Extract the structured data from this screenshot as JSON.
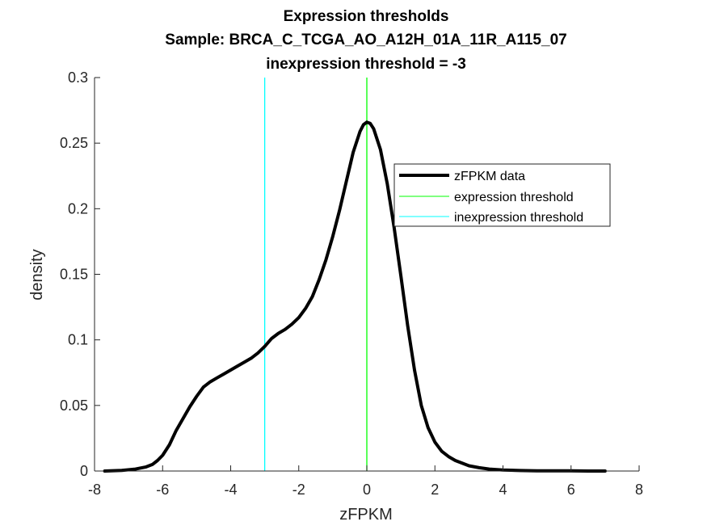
{
  "chart_data": {
    "type": "line",
    "title": "Expression thresholds",
    "subtitle": "Sample: BRCA_C_TCGA_AO_A12H_01A_11R_A115_07",
    "subtitle2": "inexpression threshold = -3",
    "xlabel": "zFPKM",
    "ylabel": "density",
    "xlim": [
      -8,
      8
    ],
    "ylim": [
      0,
      0.3
    ],
    "xticks": [
      -8,
      -6,
      -4,
      -2,
      0,
      2,
      4,
      6,
      8
    ],
    "xtick_labels": [
      "-8",
      "-6",
      "-4",
      "-2",
      "0",
      "2",
      "4",
      "6",
      "8"
    ],
    "yticks": [
      0,
      0.05,
      0.1,
      0.15,
      0.2,
      0.25,
      0.3
    ],
    "ytick_labels": [
      "0",
      "0.05",
      "0.1",
      "0.15",
      "0.2",
      "0.25",
      "0.3"
    ],
    "grid": false,
    "legend_position": "right",
    "series": [
      {
        "name": "zFPKM data",
        "color": "#000000",
        "x": [
          -7.7,
          -7.2,
          -6.8,
          -6.5,
          -6.3,
          -6.15,
          -6.0,
          -5.8,
          -5.6,
          -5.4,
          -5.2,
          -5.0,
          -4.8,
          -4.6,
          -4.4,
          -4.2,
          -4.0,
          -3.8,
          -3.6,
          -3.4,
          -3.2,
          -3.0,
          -2.8,
          -2.6,
          -2.4,
          -2.2,
          -2.0,
          -1.8,
          -1.6,
          -1.4,
          -1.2,
          -1.0,
          -0.8,
          -0.6,
          -0.4,
          -0.2,
          -0.1,
          0.0,
          0.1,
          0.2,
          0.4,
          0.6,
          0.8,
          1.0,
          1.2,
          1.4,
          1.6,
          1.8,
          2.0,
          2.2,
          2.4,
          2.6,
          2.8,
          3.0,
          3.3,
          3.6,
          4.0,
          4.5,
          5.0,
          5.5,
          6.0,
          6.5,
          7.0
        ],
        "y": [
          0.0,
          0.0005,
          0.0015,
          0.003,
          0.005,
          0.008,
          0.012,
          0.02,
          0.031,
          0.04,
          0.049,
          0.057,
          0.064,
          0.068,
          0.071,
          0.074,
          0.077,
          0.08,
          0.083,
          0.086,
          0.09,
          0.095,
          0.101,
          0.105,
          0.108,
          0.112,
          0.117,
          0.124,
          0.133,
          0.146,
          0.161,
          0.179,
          0.199,
          0.221,
          0.243,
          0.259,
          0.264,
          0.266,
          0.265,
          0.261,
          0.245,
          0.219,
          0.186,
          0.149,
          0.111,
          0.077,
          0.05,
          0.033,
          0.022,
          0.015,
          0.011,
          0.008,
          0.006,
          0.004,
          0.0025,
          0.0015,
          0.0008,
          0.0004,
          0.0002,
          0.0001,
          0.0001,
          0.0,
          0.0
        ]
      }
    ],
    "vlines": [
      {
        "name": "expression threshold",
        "x": 0,
        "color": "#00ff00"
      },
      {
        "name": "inexpression threshold",
        "x": -3,
        "color": "#00ffff"
      }
    ]
  }
}
